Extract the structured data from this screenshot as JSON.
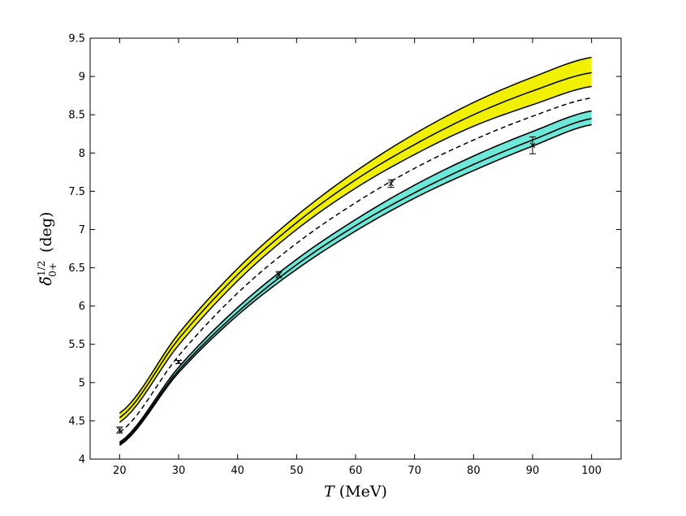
{
  "chart_data": {
    "type": "line",
    "xlabel": "T (MeV)",
    "ylabel": "δ̃^{1/2}_{0+} (deg)",
    "xlim": [
      15,
      105
    ],
    "ylim": [
      4,
      9.5
    ],
    "xticks": [
      20,
      30,
      40,
      50,
      60,
      70,
      80,
      90,
      100
    ],
    "yticks": [
      4,
      4.5,
      5,
      5.5,
      6,
      6.5,
      7,
      7.5,
      8,
      8.5,
      9,
      9.5
    ],
    "grid": false,
    "colors": {
      "yellow_band": "#f0f000",
      "cyan_band": "#6ee8d8",
      "line": "#000000"
    },
    "x": [
      20,
      30,
      40,
      50,
      60,
      70,
      80,
      90,
      100
    ],
    "series": [
      {
        "style": "yellow-band-upper",
        "values": [
          4.6,
          5.64,
          6.49,
          7.18,
          7.76,
          8.25,
          8.66,
          8.99,
          9.25
        ]
      },
      {
        "style": "yellow-band-center",
        "values": [
          4.54,
          5.57,
          6.41,
          7.09,
          7.65,
          8.11,
          8.5,
          8.81,
          9.05
        ]
      },
      {
        "style": "yellow-band-lower",
        "values": [
          4.48,
          5.49,
          6.33,
          7.0,
          7.54,
          7.98,
          8.35,
          8.63,
          8.87
        ]
      },
      {
        "style": "dashed",
        "values": [
          4.35,
          5.35,
          6.17,
          6.82,
          7.35,
          7.8,
          8.17,
          8.48,
          8.72
        ]
      },
      {
        "style": "cyan-band-upper",
        "values": [
          4.22,
          5.2,
          5.98,
          6.61,
          7.13,
          7.58,
          7.96,
          8.28,
          8.55
        ]
      },
      {
        "style": "cyan-band-center",
        "values": [
          4.2,
          5.16,
          5.92,
          6.54,
          7.05,
          7.48,
          7.85,
          8.17,
          8.45
        ]
      },
      {
        "style": "cyan-band-lower",
        "values": [
          4.18,
          5.13,
          5.88,
          6.48,
          6.98,
          7.41,
          7.77,
          8.09,
          8.37
        ]
      }
    ],
    "data_points": [
      {
        "x": 20,
        "y": 4.38,
        "err": 0.04
      },
      {
        "x": 30,
        "y": 5.27,
        "err": 0.02
      },
      {
        "x": 47,
        "y": 6.41,
        "err": 0.04
      },
      {
        "x": 66,
        "y": 7.6,
        "err": 0.05
      },
      {
        "x": 90,
        "y": 8.1,
        "err": 0.11
      }
    ]
  }
}
